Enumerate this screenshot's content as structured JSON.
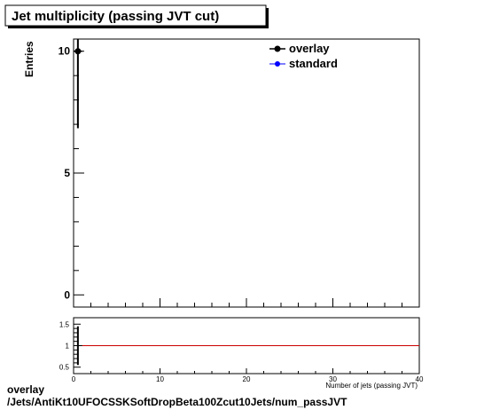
{
  "title": "Jet multiplicity (passing JVT cut)",
  "footer": {
    "line1": "overlay",
    "line2": "/Jets/AntiKt10UFOCSSKSoftDropBeta100Zcut10Jets/num_passJVT"
  },
  "colors": {
    "overlay": "#000000",
    "standard": "#0000ff",
    "ratio_line": "#cc0000"
  },
  "chart_data": [
    {
      "type": "scatter",
      "ylabel": "Entries",
      "xlabel": "Number of jets (passing JVT)",
      "xlim": [
        0,
        40
      ],
      "ylim": [
        -0.5,
        10.5
      ],
      "yticks": [
        0,
        5,
        10
      ],
      "legend_position": "top-right",
      "grid": false,
      "series": [
        {
          "name": "overlay",
          "x": [
            0.5
          ],
          "y": [
            10
          ],
          "yerr": [
            3.16
          ]
        },
        {
          "name": "standard",
          "x": [
            0.5
          ],
          "y": [
            10
          ],
          "yerr": [
            3.16
          ]
        }
      ]
    },
    {
      "type": "line",
      "xlim": [
        0,
        40
      ],
      "ylim": [
        0.35,
        1.65
      ],
      "yticks": [
        0.5,
        1,
        1.5
      ],
      "xticks": [
        0,
        10,
        20,
        30,
        40
      ],
      "reference_line": 1,
      "points": [
        {
          "x": 0.5,
          "y": 1,
          "yerr": 0.45
        }
      ]
    }
  ]
}
